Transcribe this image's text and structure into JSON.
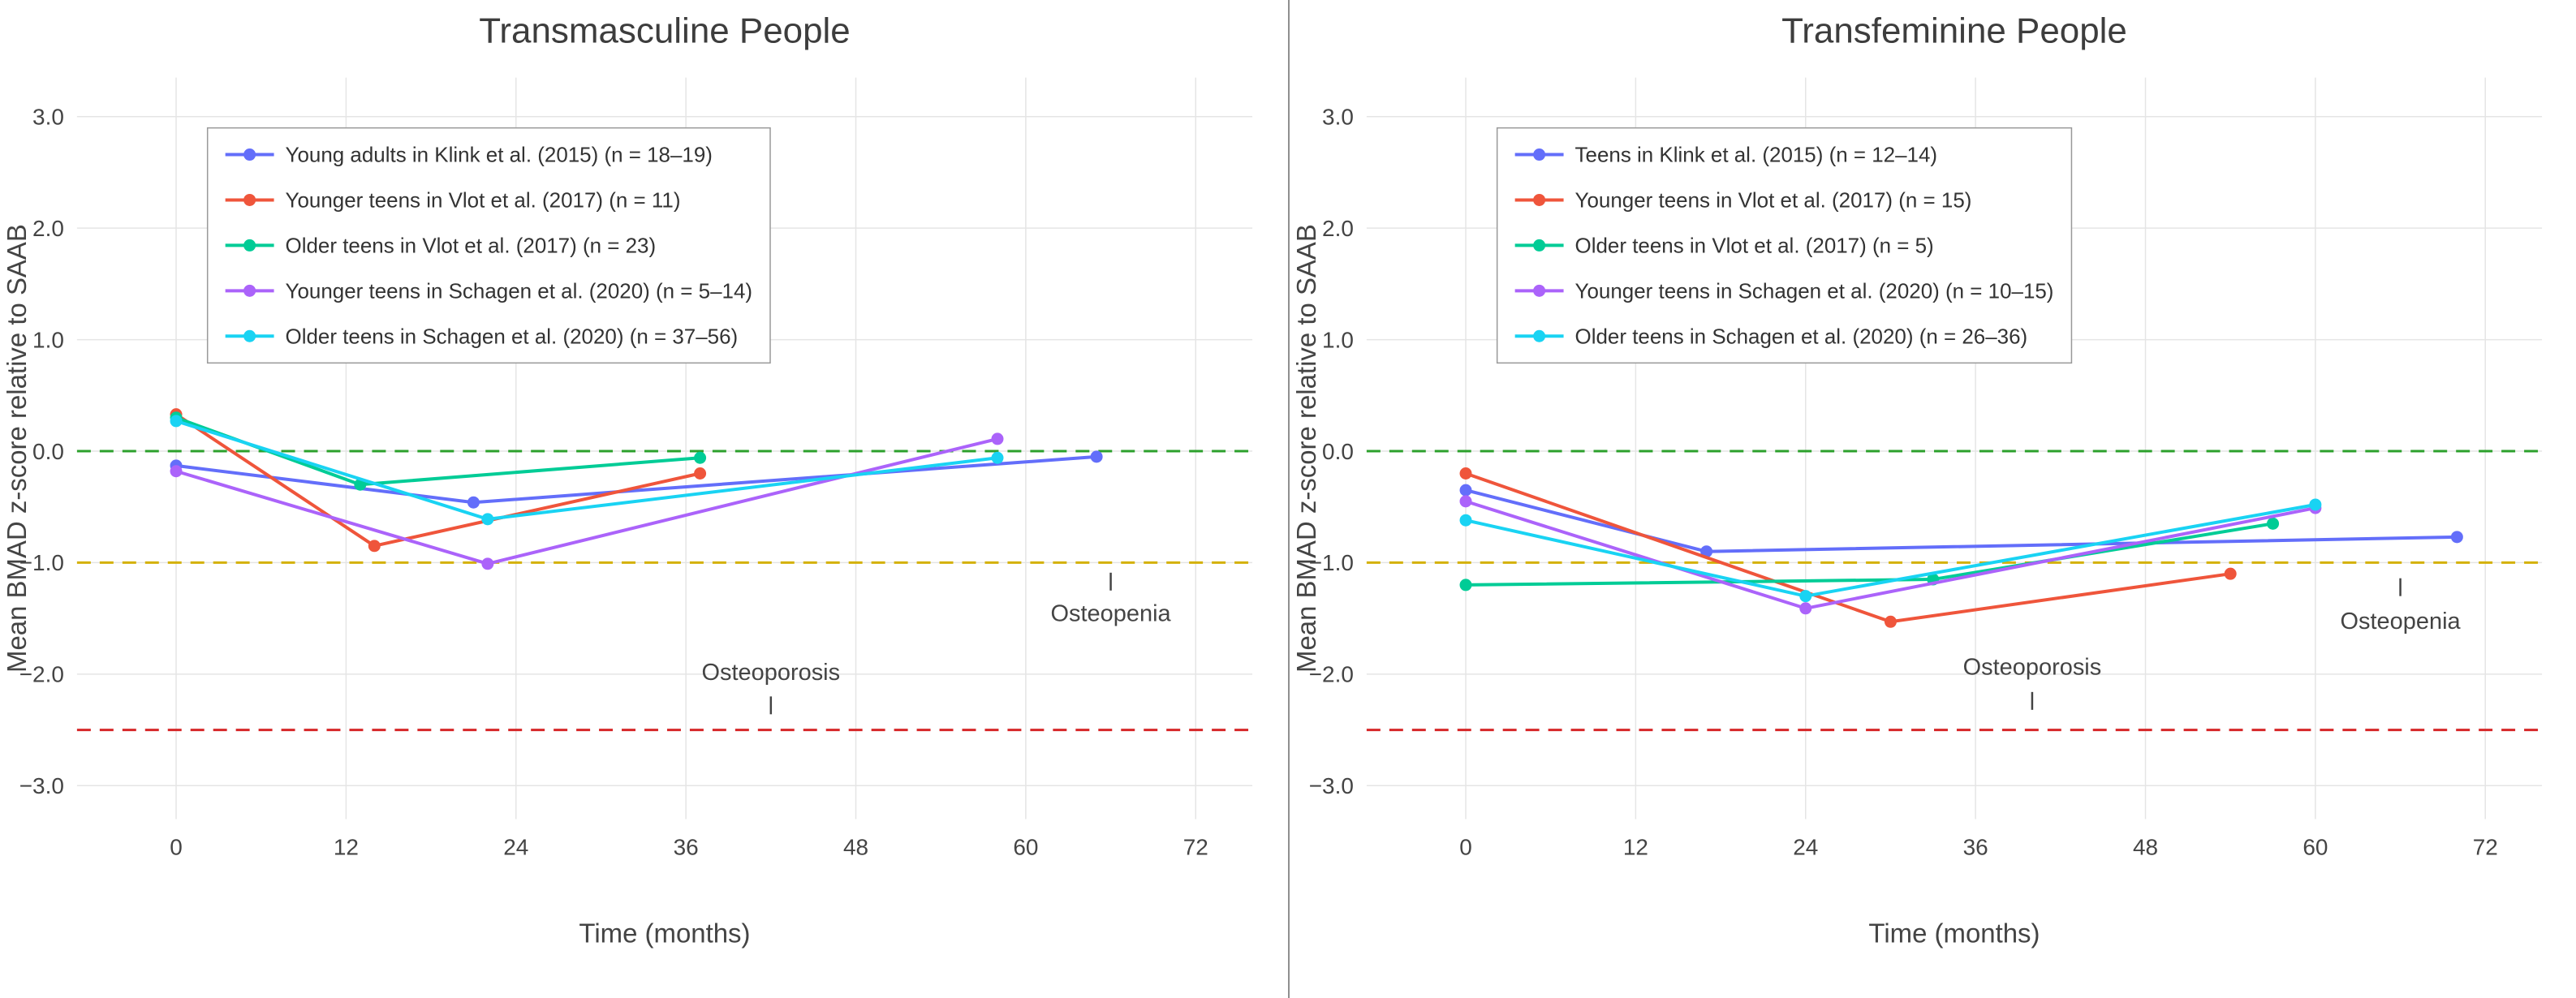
{
  "style": {
    "background": "#ffffff",
    "grid_color": "#e5e5e5",
    "axis_text_color": "#444444",
    "title_color": "#3d3d3d",
    "legend_text_color": "#333333",
    "legend_border_color": "#999999",
    "divider_color": "#8f8f8f",
    "series_palette": [
      "#636EFA",
      "#EF553B",
      "#00CC96",
      "#AB63FA",
      "#19D3F3"
    ]
  },
  "chart_data": [
    {
      "type": "line",
      "title": "Transmasculine People",
      "xlabel": "Time (months)",
      "ylabel": "Mean BMAD z-score relative to SAAB",
      "xlim": [
        -7,
        76
      ],
      "ylim": [
        -3.3,
        3.35
      ],
      "grid": true,
      "legend_position": "top-left",
      "xticks": [
        0,
        12,
        24,
        36,
        48,
        60,
        72
      ],
      "xtick_labels": [
        "0",
        "12",
        "24",
        "36",
        "48",
        "60",
        "72"
      ],
      "yticks": [
        3,
        2,
        1,
        0,
        -1,
        -2,
        -3
      ],
      "ytick_labels": [
        "3.0",
        "2.0",
        "1.0",
        "0.0",
        "−1.0",
        "−2.0",
        "−3.0"
      ],
      "reference_lines": [
        {
          "name": "saab-mean-line",
          "y": 0,
          "color": "#2ca02c"
        },
        {
          "name": "osteopenia-threshold-line",
          "y": -1,
          "color": "#d4b106"
        },
        {
          "name": "osteoporosis-threshold-line",
          "y": -2.5,
          "color": "#d62728"
        }
      ],
      "annotations": [
        {
          "name": "osteoporosis-label",
          "text": "Osteoporosis",
          "x": 42,
          "y": -1.98,
          "tick_x": 42,
          "tick_y": -2.28
        },
        {
          "name": "osteopenia-label",
          "text": "Osteopenia",
          "x": 66,
          "y": -1.45,
          "tick_x": 66,
          "tick_y": -1.17
        }
      ],
      "series": [
        {
          "id": "klink-2015-young-adults",
          "name": "Young adults in Klink et al. (2015) (n = 18–19)",
          "color": "#636EFA",
          "points": [
            [
              0,
              -0.13
            ],
            [
              21,
              -0.46
            ],
            [
              65,
              -0.05
            ]
          ]
        },
        {
          "id": "vlot-2017-younger-teens",
          "name": "Younger teens in Vlot et al. (2017) (n = 11)",
          "color": "#EF553B",
          "points": [
            [
              0,
              0.33
            ],
            [
              14,
              -0.85
            ],
            [
              37,
              -0.2
            ]
          ]
        },
        {
          "id": "vlot-2017-older-teens",
          "name": "Older teens in Vlot et al. (2017) (n = 23)",
          "color": "#00CC96",
          "points": [
            [
              0,
              0.3
            ],
            [
              13,
              -0.3
            ],
            [
              37,
              -0.06
            ]
          ]
        },
        {
          "id": "schagen-2020-younger-teens",
          "name": "Younger teens in Schagen et al. (2020) (n = 5–14)",
          "color": "#AB63FA",
          "points": [
            [
              0,
              -0.18
            ],
            [
              22,
              -1.01
            ],
            [
              58,
              0.11
            ]
          ]
        },
        {
          "id": "schagen-2020-older-teens",
          "name": "Older teens in Schagen et al. (2020) (n = 37–56)",
          "color": "#19D3F3",
          "points": [
            [
              0,
              0.27
            ],
            [
              22,
              -0.61
            ],
            [
              58,
              -0.06
            ]
          ]
        }
      ]
    },
    {
      "type": "line",
      "title": "Transfeminine People",
      "xlabel": "Time (months)",
      "ylabel": "Mean BMAD z-score relative to SAAB",
      "xlim": [
        -7,
        76
      ],
      "ylim": [
        -3.3,
        3.35
      ],
      "grid": true,
      "legend_position": "top-left",
      "xticks": [
        0,
        12,
        24,
        36,
        48,
        60,
        72
      ],
      "xtick_labels": [
        "0",
        "12",
        "24",
        "36",
        "48",
        "60",
        "72"
      ],
      "yticks": [
        3,
        2,
        1,
        0,
        -1,
        -2,
        -3
      ],
      "ytick_labels": [
        "3.0",
        "2.0",
        "1.0",
        "0.0",
        "−1.0",
        "−2.0",
        "−3.0"
      ],
      "reference_lines": [
        {
          "name": "saab-mean-line",
          "y": 0,
          "color": "#2ca02c"
        },
        {
          "name": "osteopenia-threshold-line",
          "y": -1,
          "color": "#d4b106"
        },
        {
          "name": "osteoporosis-threshold-line",
          "y": -2.5,
          "color": "#d62728"
        }
      ],
      "annotations": [
        {
          "name": "osteoporosis-label",
          "text": "Osteoporosis",
          "x": 40,
          "y": -1.93,
          "tick_x": 40,
          "tick_y": -2.24
        },
        {
          "name": "osteopenia-label",
          "text": "Osteopenia",
          "x": 66,
          "y": -1.52,
          "tick_x": 66,
          "tick_y": -1.22
        }
      ],
      "series": [
        {
          "id": "klink-2015-teens",
          "name": "Teens in Klink et al. (2015) (n = 12–14)",
          "color": "#636EFA",
          "points": [
            [
              0,
              -0.35
            ],
            [
              17,
              -0.9
            ],
            [
              70,
              -0.77
            ]
          ]
        },
        {
          "id": "vlot-2017-younger-teens",
          "name": "Younger teens in Vlot et al. (2017) (n = 15)",
          "color": "#EF553B",
          "points": [
            [
              0,
              -0.2
            ],
            [
              30,
              -1.53
            ],
            [
              54,
              -1.1
            ]
          ]
        },
        {
          "id": "vlot-2017-older-teens",
          "name": "Older teens in Vlot et al. (2017) (n = 5)",
          "color": "#00CC96",
          "points": [
            [
              0,
              -1.2
            ],
            [
              33,
              -1.15
            ],
            [
              57,
              -0.65
            ]
          ]
        },
        {
          "id": "schagen-2020-younger-teens",
          "name": "Younger teens in Schagen et al. (2020) (n = 10–15)",
          "color": "#AB63FA",
          "points": [
            [
              0,
              -0.45
            ],
            [
              24,
              -1.41
            ],
            [
              60,
              -0.51
            ]
          ]
        },
        {
          "id": "schagen-2020-older-teens",
          "name": "Older teens in Schagen et al. (2020) (n = 26–36)",
          "color": "#19D3F3",
          "points": [
            [
              0,
              -0.62
            ],
            [
              24,
              -1.3
            ],
            [
              60,
              -0.48
            ]
          ]
        }
      ]
    }
  ]
}
